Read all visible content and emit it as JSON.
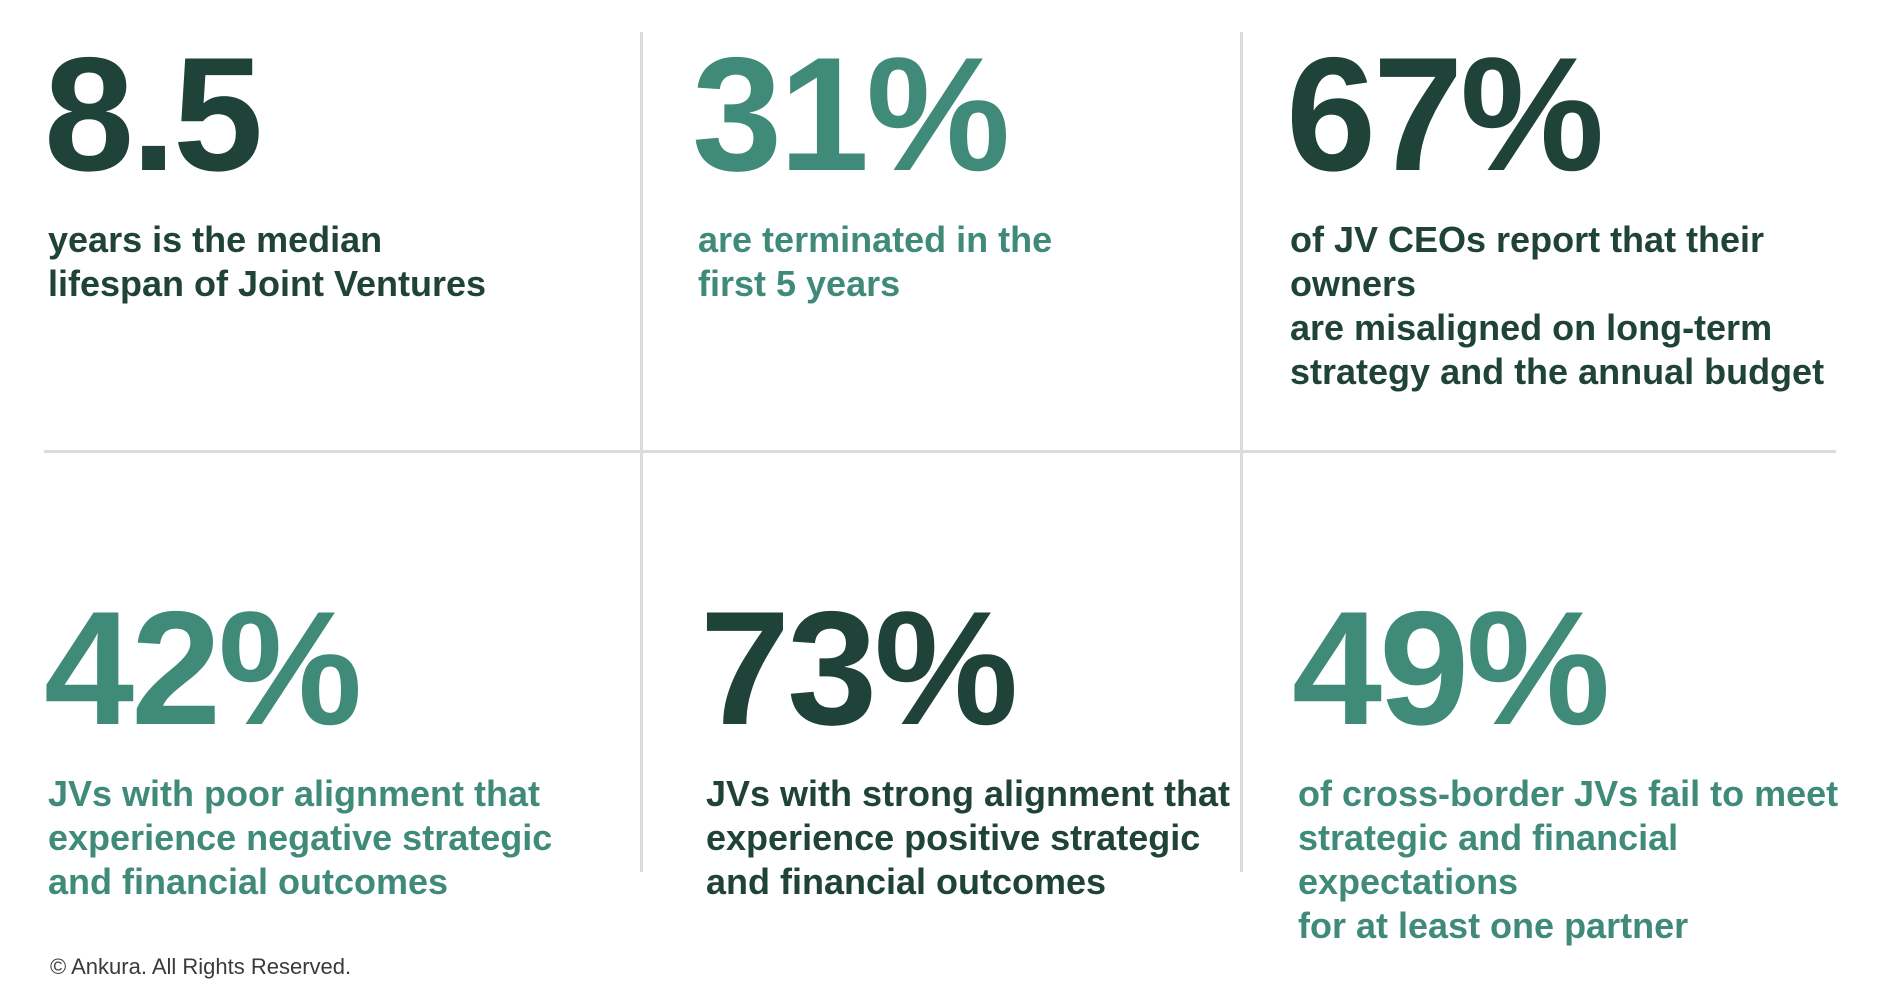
{
  "stats": [
    {
      "value": "8.5",
      "text": "years is the median\nlifespan of Joint Ventures",
      "color": "#1f4239"
    },
    {
      "value": "31%",
      "text": "are terminated in the\nfirst 5 years",
      "color": "#3f8a78"
    },
    {
      "value": "67%",
      "text": "of JV CEOs report that their owners\nare misaligned on long-term\nstrategy and the annual budget",
      "color": "#1f4239"
    },
    {
      "value": "42%",
      "text": "JVs with poor alignment that\nexperience negative strategic\nand financial outcomes",
      "color": "#3f8a78"
    },
    {
      "value": "73%",
      "text": "JVs with strong alignment that\nexperience positive strategic\nand financial outcomes",
      "color": "#1f4239"
    },
    {
      "value": "49%",
      "text": "of cross-border JVs fail to meet\nstrategic and financial expectations\nfor at least one partner",
      "color": "#3f8a78"
    }
  ],
  "footer": "© Ankura. All Rights Reserved."
}
